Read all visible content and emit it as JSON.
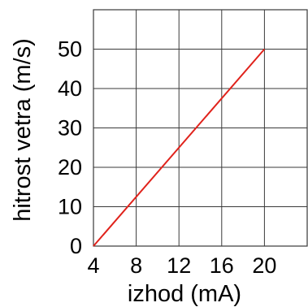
{
  "chart_data": {
    "type": "line",
    "title": "",
    "xlabel": "izhod (mA)",
    "ylabel": "hitrost vetra (m/s)",
    "xlim": [
      4,
      24
    ],
    "ylim": [
      0,
      60
    ],
    "xticks": [
      4,
      8,
      12,
      16,
      20
    ],
    "yticks": [
      0,
      10,
      20,
      30,
      40,
      50
    ],
    "grid": true,
    "legend": "none",
    "series": [
      {
        "x": [
          4,
          20
        ],
        "y": [
          0,
          50
        ],
        "color": "#e0221b"
      }
    ],
    "colors": {
      "line": "#e0221b",
      "grid": "#3a3a3a",
      "frame": "#3a3a3a",
      "text": "#000000"
    }
  }
}
